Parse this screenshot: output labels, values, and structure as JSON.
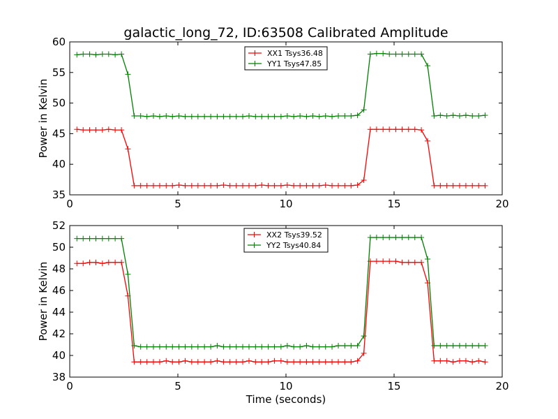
{
  "figure_title": "galactic_long_72, ID:63508 Calibrated Amplitude",
  "chart_data": [
    {
      "type": "line",
      "title": "galactic_long_72, ID:63508 Calibrated Amplitude",
      "xlabel": "",
      "ylabel": "Power in Kelvin",
      "xlim": [
        0,
        20
      ],
      "ylim": [
        35,
        60
      ],
      "xticks": [
        0,
        5,
        10,
        15,
        20
      ],
      "yticks": [
        35,
        40,
        45,
        50,
        55,
        60
      ],
      "grid": false,
      "legend_position": "top-center",
      "x": [
        0.33,
        0.62,
        0.92,
        1.21,
        1.51,
        1.8,
        2.1,
        2.39,
        2.69,
        2.98,
        3.28,
        3.57,
        3.87,
        4.16,
        4.46,
        4.75,
        5.05,
        5.34,
        5.64,
        5.93,
        6.23,
        6.52,
        6.82,
        7.11,
        7.41,
        7.7,
        8.0,
        8.29,
        8.59,
        8.88,
        9.18,
        9.47,
        9.77,
        10.06,
        10.36,
        10.65,
        10.95,
        11.24,
        11.54,
        11.83,
        12.13,
        12.42,
        12.72,
        13.01,
        13.31,
        13.6,
        13.9,
        14.19,
        14.49,
        14.78,
        15.08,
        15.37,
        15.67,
        15.96,
        16.26,
        16.55,
        16.85,
        17.14,
        17.44,
        17.73,
        18.03,
        18.32,
        18.62,
        18.91,
        19.21
      ],
      "series": [
        {
          "name": "XX1 Tsys36.48",
          "color": "#ff0000",
          "values": [
            45.7,
            45.6,
            45.6,
            45.6,
            45.6,
            45.7,
            45.6,
            45.6,
            42.5,
            36.5,
            36.5,
            36.5,
            36.5,
            36.5,
            36.5,
            36.5,
            36.6,
            36.5,
            36.5,
            36.5,
            36.5,
            36.5,
            36.5,
            36.6,
            36.5,
            36.5,
            36.5,
            36.5,
            36.5,
            36.6,
            36.5,
            36.5,
            36.5,
            36.6,
            36.5,
            36.5,
            36.5,
            36.5,
            36.5,
            36.6,
            36.5,
            36.5,
            36.5,
            36.5,
            36.6,
            37.4,
            45.7,
            45.7,
            45.7,
            45.7,
            45.7,
            45.7,
            45.7,
            45.7,
            45.6,
            43.8,
            36.5,
            36.5,
            36.5,
            36.5,
            36.5,
            36.5,
            36.5,
            36.5,
            36.5
          ]
        },
        {
          "name": "YY1 Tsys47.85",
          "color": "#008000",
          "values": [
            57.9,
            58.0,
            58.0,
            57.9,
            58.0,
            58.0,
            57.9,
            58.0,
            54.7,
            47.9,
            47.9,
            47.8,
            47.9,
            47.8,
            47.9,
            47.8,
            47.9,
            47.8,
            47.8,
            47.8,
            47.8,
            47.8,
            47.8,
            47.8,
            47.8,
            47.8,
            47.8,
            47.9,
            47.8,
            47.8,
            47.8,
            47.8,
            47.8,
            47.9,
            47.8,
            47.9,
            47.8,
            47.9,
            47.8,
            47.9,
            47.8,
            47.9,
            47.9,
            47.9,
            48.0,
            48.9,
            58.0,
            58.1,
            58.1,
            58.0,
            58.0,
            58.0,
            58.0,
            58.0,
            58.0,
            56.1,
            47.9,
            48.0,
            47.9,
            48.0,
            47.9,
            48.0,
            47.9,
            47.9,
            48.0
          ]
        }
      ]
    },
    {
      "type": "line",
      "title": "",
      "xlabel": "Time (seconds)",
      "ylabel": "Power in Kelvin",
      "xlim": [
        0,
        20
      ],
      "ylim": [
        38,
        52
      ],
      "xticks": [
        0,
        5,
        10,
        15,
        20
      ],
      "yticks": [
        38,
        40,
        42,
        44,
        46,
        48,
        50,
        52
      ],
      "grid": false,
      "legend_position": "top-center",
      "x": [
        0.33,
        0.62,
        0.92,
        1.21,
        1.51,
        1.8,
        2.1,
        2.39,
        2.69,
        2.98,
        3.28,
        3.57,
        3.87,
        4.16,
        4.46,
        4.75,
        5.05,
        5.34,
        5.64,
        5.93,
        6.23,
        6.52,
        6.82,
        7.11,
        7.41,
        7.7,
        8.0,
        8.29,
        8.59,
        8.88,
        9.18,
        9.47,
        9.77,
        10.06,
        10.36,
        10.65,
        10.95,
        11.24,
        11.54,
        11.83,
        12.13,
        12.42,
        12.72,
        13.01,
        13.31,
        13.6,
        13.9,
        14.19,
        14.49,
        14.78,
        15.08,
        15.37,
        15.67,
        15.96,
        16.26,
        16.55,
        16.85,
        17.14,
        17.44,
        17.73,
        18.03,
        18.32,
        18.62,
        18.91,
        19.21
      ],
      "series": [
        {
          "name": "XX2 Tsys39.52",
          "color": "#ff0000",
          "values": [
            48.5,
            48.5,
            48.6,
            48.6,
            48.5,
            48.6,
            48.6,
            48.6,
            45.5,
            39.4,
            39.4,
            39.4,
            39.4,
            39.4,
            39.5,
            39.4,
            39.4,
            39.5,
            39.4,
            39.4,
            39.4,
            39.4,
            39.5,
            39.4,
            39.4,
            39.4,
            39.4,
            39.5,
            39.4,
            39.4,
            39.4,
            39.5,
            39.5,
            39.4,
            39.4,
            39.4,
            39.4,
            39.4,
            39.4,
            39.4,
            39.4,
            39.4,
            39.4,
            39.4,
            39.5,
            40.2,
            48.7,
            48.7,
            48.7,
            48.7,
            48.7,
            48.6,
            48.6,
            48.6,
            48.6,
            46.7,
            39.5,
            39.5,
            39.5,
            39.4,
            39.5,
            39.5,
            39.4,
            39.5,
            39.4
          ]
        },
        {
          "name": "YY2 Tsys40.84",
          "color": "#008000",
          "values": [
            50.8,
            50.8,
            50.8,
            50.8,
            50.8,
            50.8,
            50.8,
            50.8,
            47.5,
            40.9,
            40.8,
            40.8,
            40.8,
            40.8,
            40.8,
            40.8,
            40.8,
            40.8,
            40.8,
            40.8,
            40.8,
            40.8,
            40.9,
            40.8,
            40.8,
            40.8,
            40.8,
            40.8,
            40.8,
            40.8,
            40.8,
            40.8,
            40.8,
            40.9,
            40.8,
            40.8,
            40.9,
            40.8,
            40.8,
            40.8,
            40.8,
            40.9,
            40.9,
            40.9,
            40.9,
            41.8,
            50.9,
            50.9,
            50.9,
            50.9,
            50.9,
            50.9,
            50.9,
            50.9,
            50.9,
            48.9,
            40.9,
            40.9,
            40.9,
            40.9,
            40.9,
            40.9,
            40.9,
            40.9,
            40.9
          ]
        }
      ]
    }
  ]
}
